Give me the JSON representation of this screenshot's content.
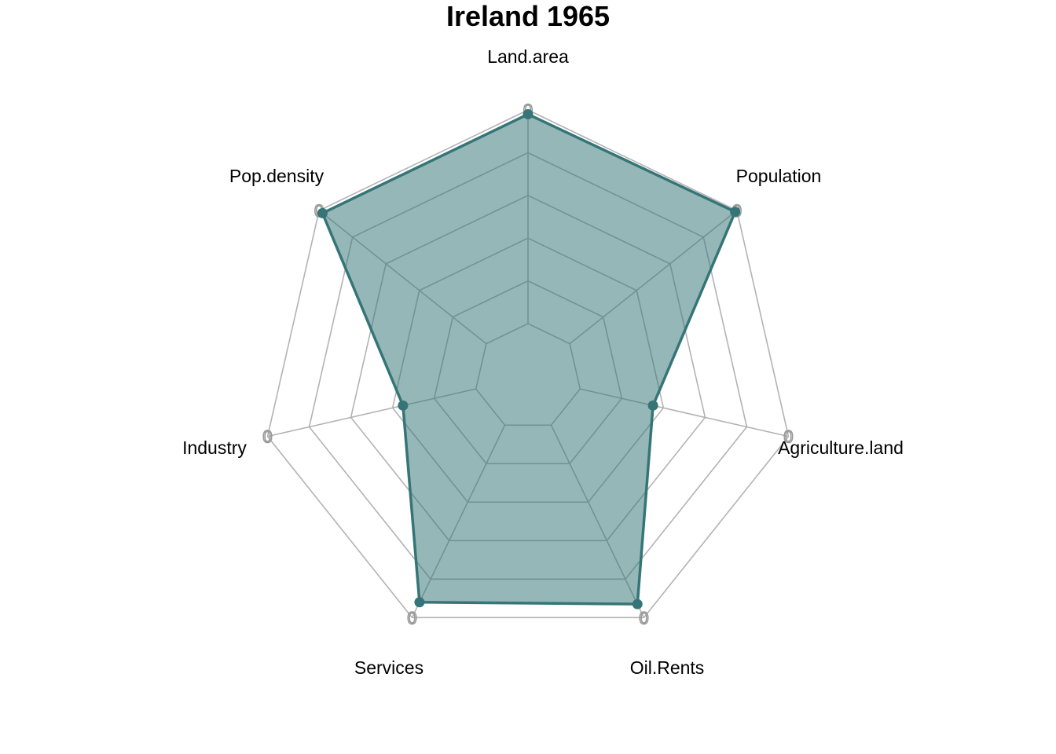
{
  "chart_data": {
    "type": "radar",
    "title": "Ireland 1965",
    "axes": [
      "Land.area",
      "Population",
      "Agriculture.land",
      "Oil.Rents",
      "Services",
      "Industry",
      "Pop.density"
    ],
    "series": [
      {
        "values": [
          0.98,
          0.99,
          0.35,
          0.93,
          0.92,
          0.35,
          0.98
        ]
      }
    ],
    "range": [
      0,
      1
    ],
    "rings": 5,
    "ring_tick_label": "0",
    "grid": true,
    "legend": "none",
    "colors": {
      "series_line": "#357577",
      "series_fill": "#357577",
      "series_fill_opacity": 0.52,
      "grid": "#b3b3b3",
      "inner_grid": "#7a9a9b"
    }
  }
}
